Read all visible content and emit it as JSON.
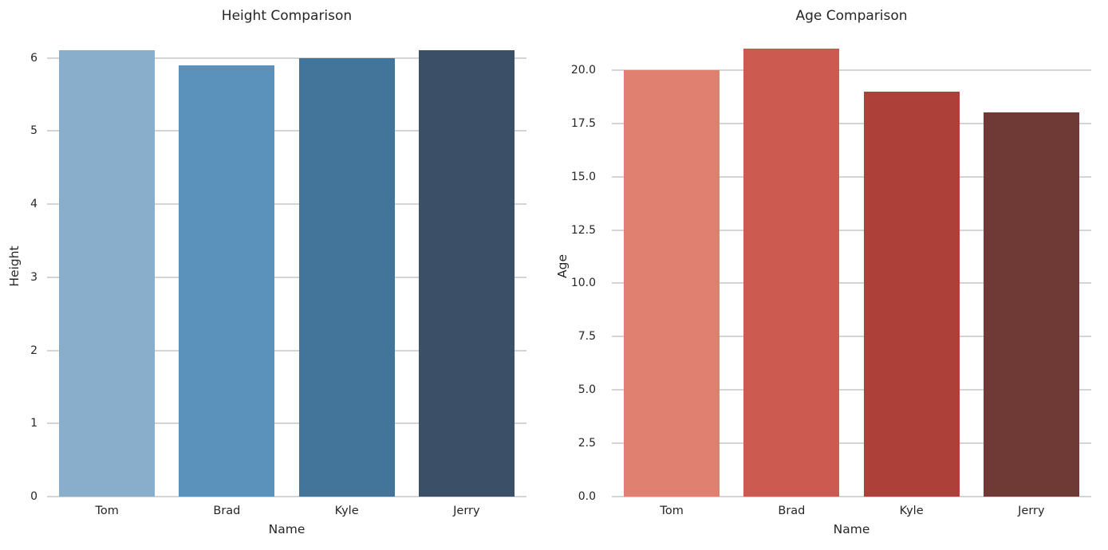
{
  "figure": {
    "background": "#ffffff"
  },
  "style": {
    "grid_color": "#d4d4d4",
    "text_color": "#262626"
  },
  "chart_data": [
    {
      "type": "bar",
      "title": "Height Comparison",
      "xlabel": "Name",
      "ylabel": "Height",
      "categories": [
        "Tom",
        "Brad",
        "Kyle",
        "Jerry"
      ],
      "values": [
        6.1,
        5.9,
        6.0,
        6.1
      ],
      "bar_colors": [
        "#88AECB",
        "#5B92BC",
        "#437499",
        "#3B5067"
      ],
      "ylim": [
        0,
        6.3
      ],
      "ytick_values": [
        0,
        1,
        2,
        3,
        4,
        5,
        6
      ],
      "ytick_labels": [
        "0",
        "1",
        "2",
        "3",
        "4",
        "5",
        "6"
      ],
      "grid": true,
      "legend_position": "none"
    },
    {
      "type": "bar",
      "title": "Age Comparison",
      "xlabel": "Name",
      "ylabel": "Age",
      "categories": [
        "Tom",
        "Brad",
        "Kyle",
        "Jerry"
      ],
      "values": [
        20,
        21,
        19,
        18
      ],
      "bar_colors": [
        "#DF8070",
        "#CC5A50",
        "#AD4139",
        "#6F3935"
      ],
      "ylim": [
        0,
        21.6
      ],
      "ytick_values": [
        0,
        2.5,
        5,
        7.5,
        10,
        12.5,
        15,
        17.5,
        20
      ],
      "ytick_labels": [
        "0.0",
        "2.5",
        "5.0",
        "7.5",
        "10.0",
        "12.5",
        "15.0",
        "17.5",
        "20.0"
      ],
      "grid": true,
      "legend_position": "none"
    }
  ]
}
